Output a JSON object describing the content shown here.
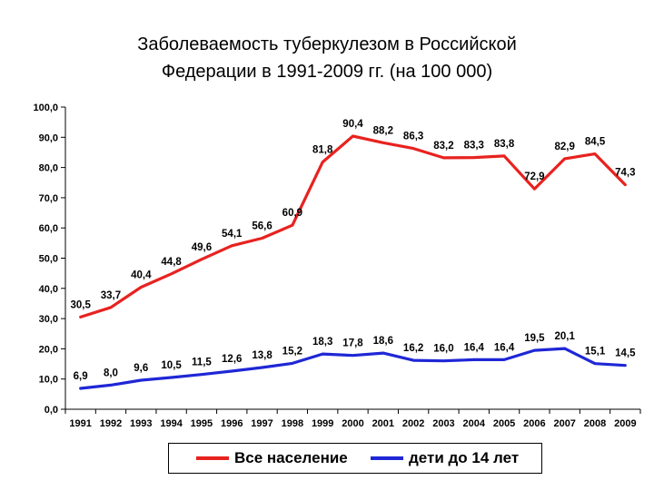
{
  "chart_data": {
    "type": "line",
    "title_line1": "Заболеваемость туберкулезом в Российской",
    "title_line2": "Федерации в 1991-2009 гг. (на 100 000)",
    "xlabel": "",
    "ylabel": "",
    "ylim": [
      0,
      100
    ],
    "yticks": [
      "0,0",
      "10,0",
      "20,0",
      "30,0",
      "40,0",
      "50,0",
      "60,0",
      "70,0",
      "80,0",
      "90,0",
      "100,0"
    ],
    "categories": [
      "1991",
      "1992",
      "1993",
      "1994",
      "1995",
      "1996",
      "1997",
      "1998",
      "1999",
      "2000",
      "2001",
      "2002",
      "2003",
      "2004",
      "2005",
      "2006",
      "2007",
      "2008",
      "2009"
    ],
    "series": [
      {
        "name": "Все население",
        "color": "#e8221f",
        "values": [
          30.5,
          33.7,
          40.4,
          44.8,
          49.6,
          54.1,
          56.6,
          60.9,
          81.8,
          90.4,
          88.2,
          86.3,
          83.2,
          83.3,
          83.8,
          72.9,
          82.9,
          84.5,
          74.3
        ],
        "labels": [
          "30,5",
          "33,7",
          "40,4",
          "44,8",
          "49,6",
          "54,1",
          "56,6",
          "60,9",
          "81,8",
          "90,4",
          "88,2",
          "86,3",
          "83,2",
          "83,3",
          "83,8",
          "72,9",
          "82,9",
          "84,5",
          "74,3"
        ]
      },
      {
        "name": "дети до 14 лет",
        "color": "#1f27d6",
        "values": [
          6.9,
          8.0,
          9.6,
          10.5,
          11.5,
          12.6,
          13.8,
          15.2,
          18.3,
          17.8,
          18.6,
          16.2,
          16.0,
          16.4,
          16.4,
          19.5,
          20.1,
          15.1,
          14.5
        ],
        "labels": [
          "6,9",
          "8,0",
          "9,6",
          "10,5",
          "11,5",
          "12,6",
          "13,8",
          "15,2",
          "18,3",
          "17,8",
          "18,6",
          "16,2",
          "16,0",
          "16,4",
          "16,4",
          "19,5",
          "20,1",
          "15,1",
          "14,5"
        ]
      }
    ],
    "grid": false,
    "legend_position": "bottom"
  }
}
